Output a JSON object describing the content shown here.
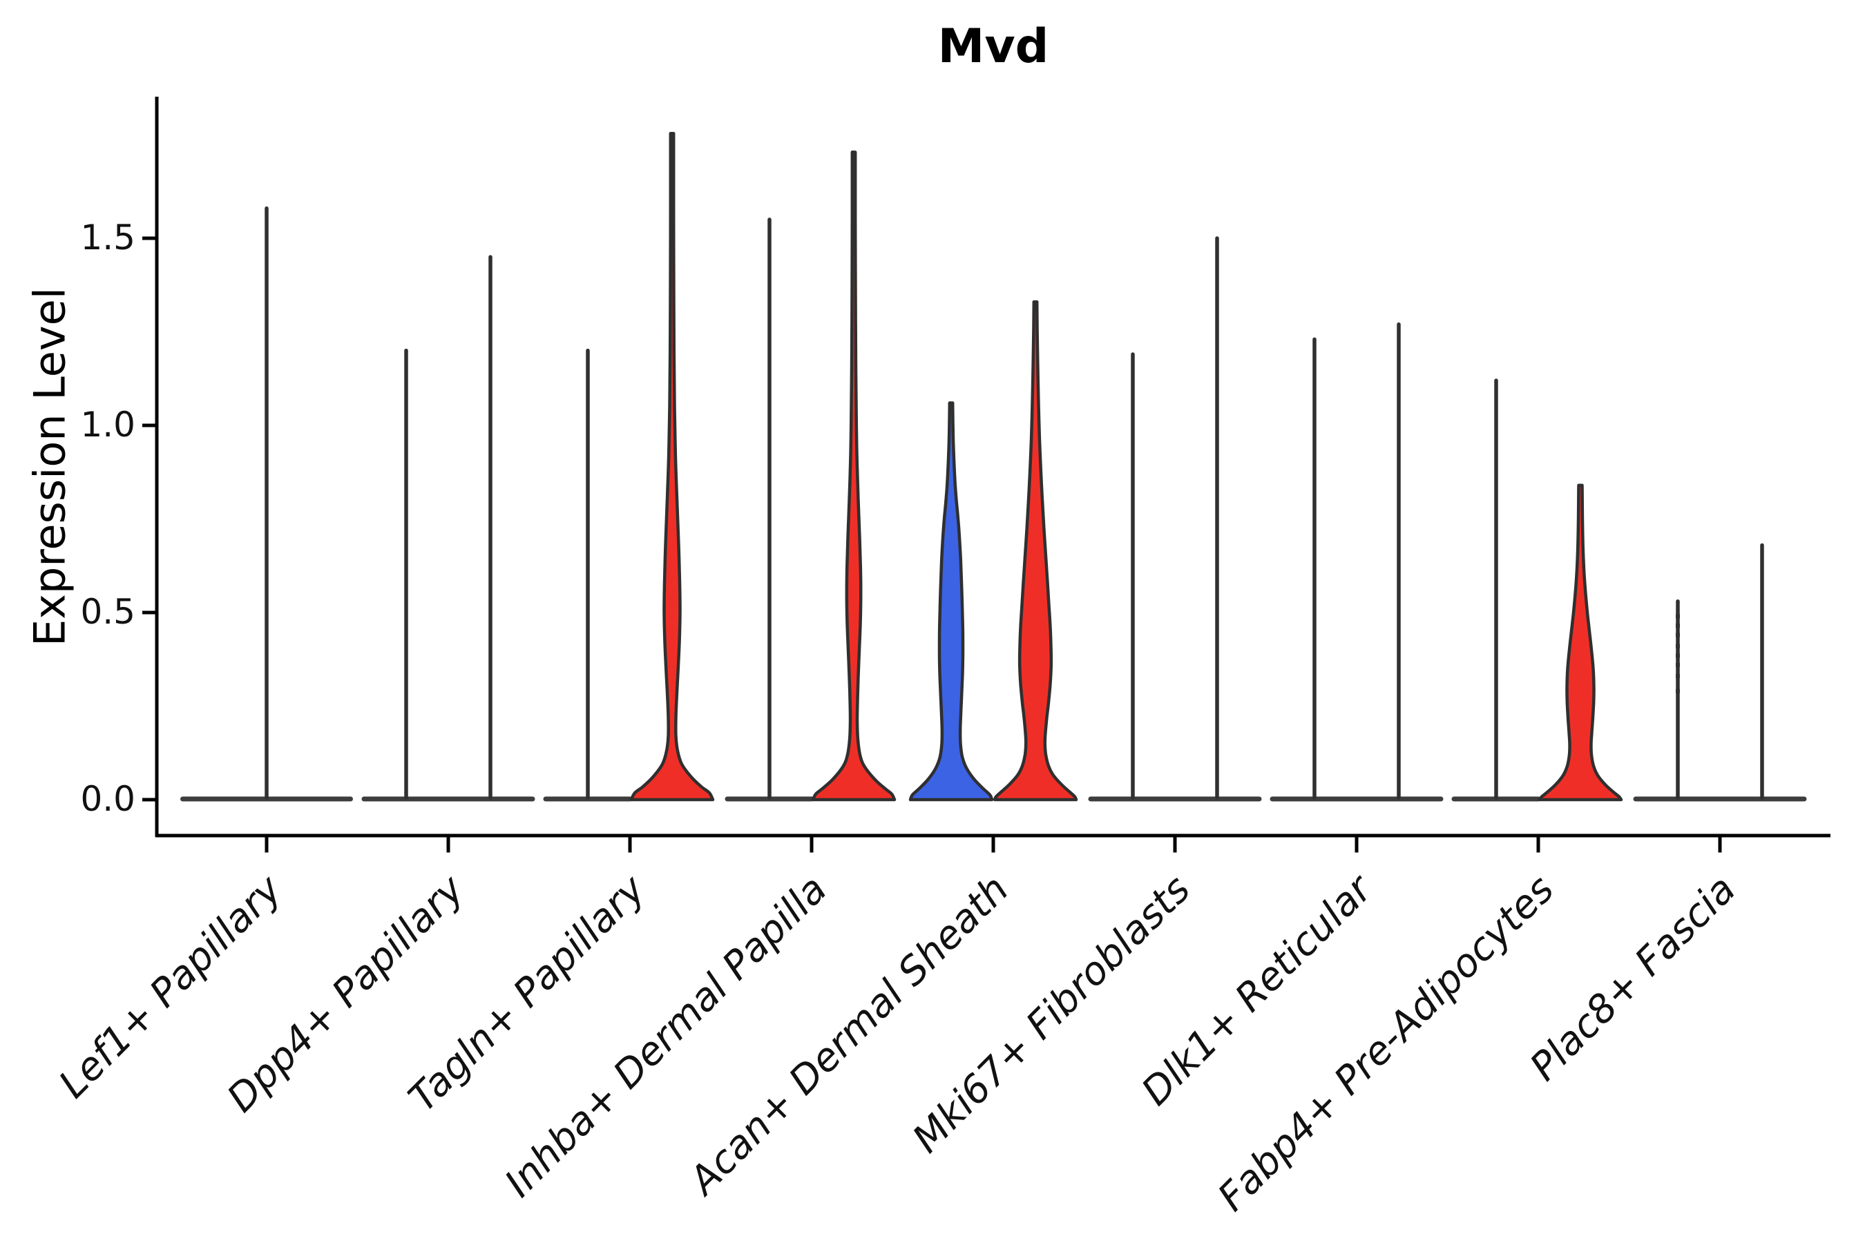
{
  "title": "Mvd",
  "colors": {
    "red": "#EF2F27",
    "blue": "#3C63E4",
    "outline": "#2F2F2F",
    "spike": "#303030",
    "baseline": "#3D3D3D",
    "axis": "#000000"
  },
  "chart_data": {
    "type": "violin",
    "title": "Mvd",
    "ylabel": "Expression Level",
    "xlabel": "",
    "yticks": [
      0.0,
      0.5,
      1.0,
      1.5
    ],
    "ytick_labels": [
      "0.0",
      "0.5",
      "1.0",
      "1.5"
    ],
    "ylim": [
      -0.1,
      1.88
    ],
    "grid": false,
    "legend": false,
    "categories": [
      "Lef1+ Papillary",
      "Dpp4+ Papillary",
      "Tagln+ Papillary",
      "Inhba+ Dermal Papilla",
      "Acan+ Dermal Sheath",
      "Mki67+ Fibroblasts",
      "Dlk1+ Reticular",
      "Fabp4+ Pre-Adipocytes",
      "Plac8+ Fascia"
    ],
    "violins": [
      {
        "category_index": 0,
        "pos": "center",
        "style": "spike",
        "max": 1.58,
        "fill": null
      },
      {
        "category_index": 1,
        "pos": "left",
        "style": "spike",
        "max": 1.2,
        "fill": null
      },
      {
        "category_index": 1,
        "pos": "right",
        "style": "spike",
        "max": 1.45,
        "fill": null
      },
      {
        "category_index": 2,
        "pos": "left",
        "style": "spike",
        "max": 1.2,
        "fill": null
      },
      {
        "category_index": 2,
        "pos": "right",
        "style": "shaped",
        "max": 1.78,
        "fill": "red",
        "profile": [
          [
            1.78,
            2.2
          ],
          [
            1.6,
            2.2
          ],
          [
            1.4,
            2.4
          ],
          [
            1.2,
            2.8
          ],
          [
            1.05,
            3.5
          ],
          [
            0.95,
            4.5
          ],
          [
            0.88,
            5.5
          ],
          [
            0.78,
            7.5
          ],
          [
            0.68,
            9.5
          ],
          [
            0.58,
            11.0
          ],
          [
            0.5,
            11.5
          ],
          [
            0.42,
            10.5
          ],
          [
            0.34,
            8.5
          ],
          [
            0.28,
            6.8
          ],
          [
            0.22,
            5.5
          ],
          [
            0.17,
            5.5
          ],
          [
            0.13,
            8.0
          ],
          [
            0.095,
            14.0
          ],
          [
            0.06,
            28.0
          ],
          [
            0.035,
            42.0
          ],
          [
            0.018,
            54.0
          ],
          [
            0.0,
            59.0
          ]
        ]
      },
      {
        "category_index": 3,
        "pos": "left",
        "style": "spike",
        "max": 1.55,
        "fill": null
      },
      {
        "category_index": 3,
        "pos": "right",
        "style": "shaped",
        "max": 1.73,
        "fill": "red",
        "profile": [
          [
            1.73,
            2.2
          ],
          [
            1.55,
            2.2
          ],
          [
            1.35,
            2.5
          ],
          [
            1.15,
            3.0
          ],
          [
            1.0,
            3.8
          ],
          [
            0.9,
            4.8
          ],
          [
            0.8,
            6.5
          ],
          [
            0.7,
            8.5
          ],
          [
            0.62,
            9.8
          ],
          [
            0.55,
            10.2
          ],
          [
            0.47,
            9.5
          ],
          [
            0.4,
            8.0
          ],
          [
            0.33,
            6.5
          ],
          [
            0.27,
            5.5
          ],
          [
            0.21,
            5.0
          ],
          [
            0.16,
            6.0
          ],
          [
            0.12,
            9.0
          ],
          [
            0.09,
            15.0
          ],
          [
            0.055,
            30.0
          ],
          [
            0.03,
            45.0
          ],
          [
            0.015,
            55.0
          ],
          [
            0.0,
            59.0
          ]
        ]
      },
      {
        "category_index": 4,
        "pos": "left",
        "style": "shaped",
        "max": 1.06,
        "fill": "blue",
        "profile": [
          [
            1.06,
            2.2
          ],
          [
            1.0,
            2.6
          ],
          [
            0.95,
            3.2
          ],
          [
            0.9,
            4.2
          ],
          [
            0.85,
            5.5
          ],
          [
            0.8,
            7.5
          ],
          [
            0.75,
            10.0
          ],
          [
            0.7,
            12.0
          ],
          [
            0.64,
            13.8
          ],
          [
            0.58,
            15.0
          ],
          [
            0.52,
            16.0
          ],
          [
            0.46,
            16.8
          ],
          [
            0.4,
            17.0
          ],
          [
            0.34,
            16.5
          ],
          [
            0.28,
            15.2
          ],
          [
            0.23,
            14.0
          ],
          [
            0.19,
            13.2
          ],
          [
            0.15,
            13.5
          ],
          [
            0.115,
            16.0
          ],
          [
            0.085,
            22.0
          ],
          [
            0.055,
            33.0
          ],
          [
            0.03,
            46.0
          ],
          [
            0.013,
            56.0
          ],
          [
            0.0,
            59.0
          ]
        ]
      },
      {
        "category_index": 4,
        "pos": "right",
        "style": "shaped",
        "max": 1.33,
        "fill": "red",
        "profile": [
          [
            1.33,
            2.2
          ],
          [
            1.25,
            2.6
          ],
          [
            1.18,
            3.2
          ],
          [
            1.1,
            4.0
          ],
          [
            1.02,
            5.0
          ],
          [
            0.95,
            6.2
          ],
          [
            0.88,
            7.8
          ],
          [
            0.8,
            10.0
          ],
          [
            0.72,
            12.5
          ],
          [
            0.65,
            15.0
          ],
          [
            0.58,
            17.5
          ],
          [
            0.52,
            19.5
          ],
          [
            0.46,
            21.5
          ],
          [
            0.41,
            22.5
          ],
          [
            0.36,
            22.8
          ],
          [
            0.31,
            21.5
          ],
          [
            0.26,
            19.0
          ],
          [
            0.22,
            16.5
          ],
          [
            0.18,
            14.5
          ],
          [
            0.15,
            13.8
          ],
          [
            0.12,
            15.0
          ],
          [
            0.09,
            19.0
          ],
          [
            0.065,
            26.0
          ],
          [
            0.04,
            38.0
          ],
          [
            0.02,
            50.0
          ],
          [
            0.008,
            57.0
          ],
          [
            0.0,
            59.0
          ]
        ]
      },
      {
        "category_index": 5,
        "pos": "left",
        "style": "spike",
        "max": 1.19,
        "fill": null
      },
      {
        "category_index": 5,
        "pos": "right",
        "style": "spike",
        "max": 1.5,
        "fill": null
      },
      {
        "category_index": 6,
        "pos": "left",
        "style": "spike",
        "max": 1.23,
        "fill": null
      },
      {
        "category_index": 6,
        "pos": "right",
        "style": "spike",
        "max": 1.27,
        "fill": null
      },
      {
        "category_index": 7,
        "pos": "left",
        "style": "spike",
        "max": 1.12,
        "fill": null
      },
      {
        "category_index": 7,
        "pos": "right",
        "style": "shaped",
        "max": 0.84,
        "fill": "red",
        "profile": [
          [
            0.84,
            2.5
          ],
          [
            0.78,
            2.8
          ],
          [
            0.72,
            3.2
          ],
          [
            0.66,
            4.0
          ],
          [
            0.6,
            5.5
          ],
          [
            0.55,
            7.5
          ],
          [
            0.5,
            10.0
          ],
          [
            0.45,
            13.0
          ],
          [
            0.4,
            16.0
          ],
          [
            0.35,
            18.5
          ],
          [
            0.3,
            19.5
          ],
          [
            0.26,
            19.2
          ],
          [
            0.22,
            18.0
          ],
          [
            0.18,
            16.5
          ],
          [
            0.15,
            15.5
          ],
          [
            0.12,
            16.0
          ],
          [
            0.09,
            19.0
          ],
          [
            0.065,
            25.0
          ],
          [
            0.04,
            36.0
          ],
          [
            0.02,
            48.0
          ],
          [
            0.008,
            56.0
          ],
          [
            0.0,
            59.0
          ]
        ]
      },
      {
        "category_index": 8,
        "pos": "left",
        "style": "spike",
        "max": 0.53,
        "fill": null,
        "jitter": [
          0.29,
          0.33,
          0.36,
          0.385,
          0.41,
          0.44,
          0.465,
          0.49
        ]
      },
      {
        "category_index": 8,
        "pos": "right",
        "style": "spike",
        "max": 0.68,
        "fill": null
      }
    ]
  }
}
